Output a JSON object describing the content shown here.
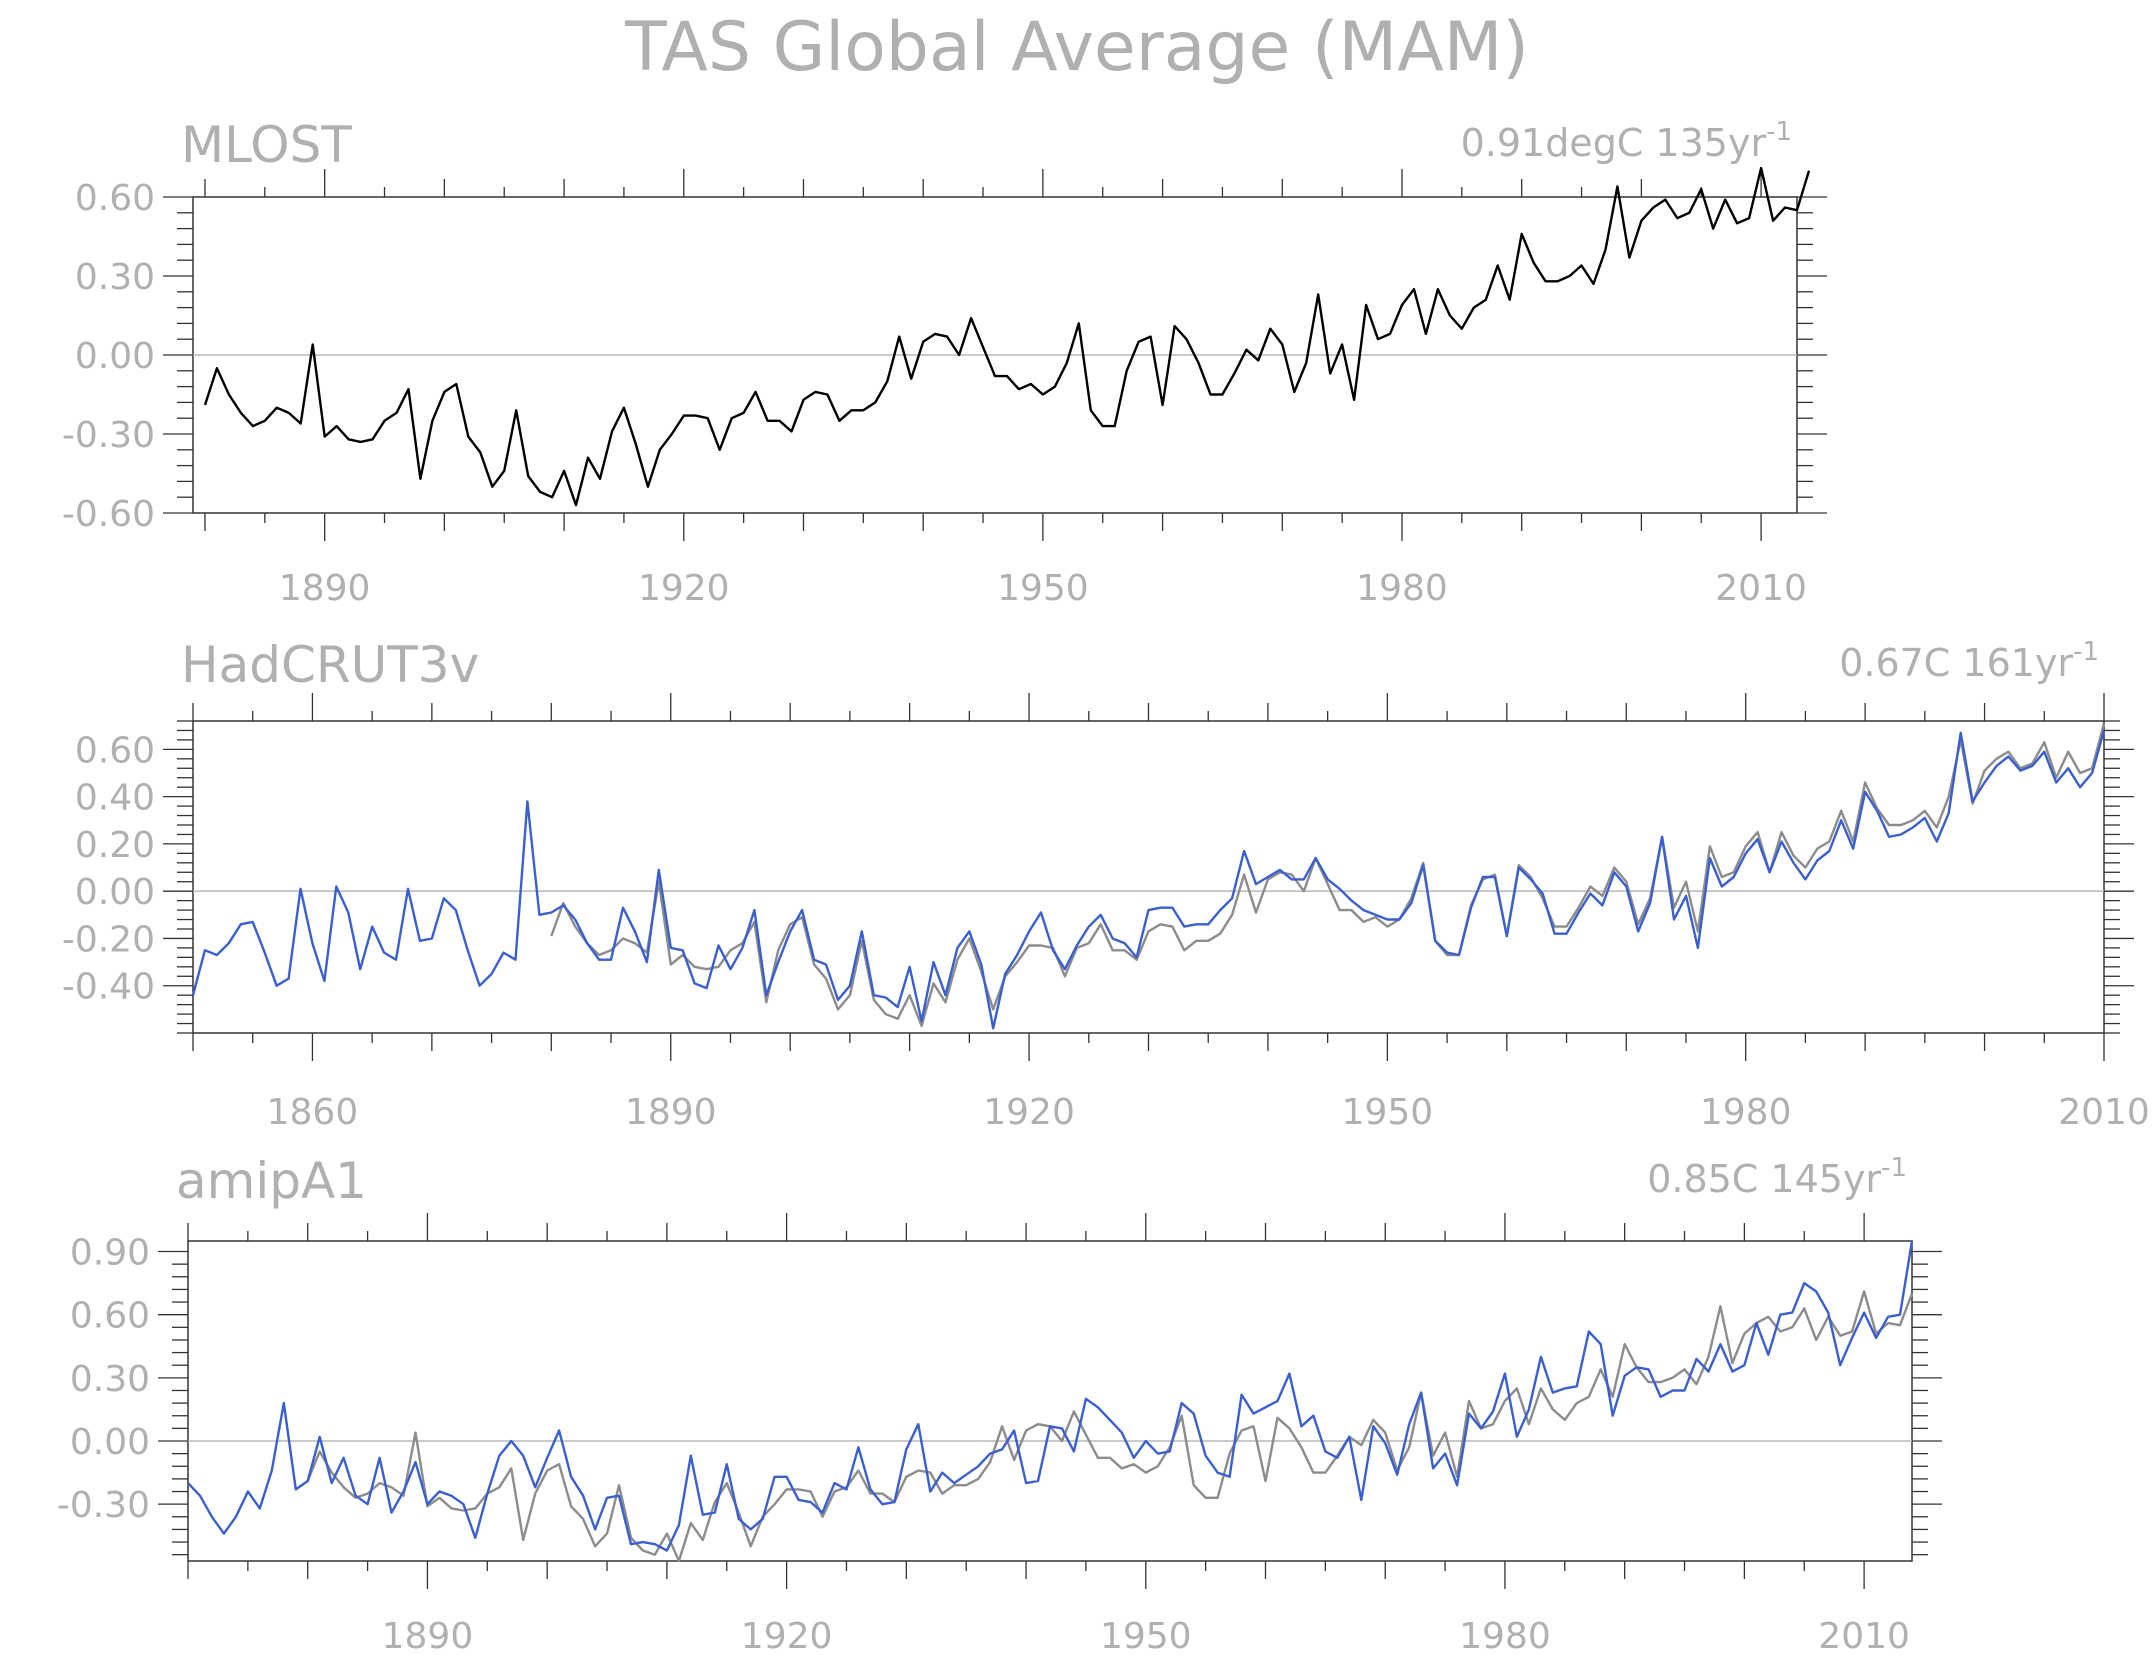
{
  "title": "TAS Global Average (MAM)",
  "colors": {
    "text": "#b0b0b0",
    "axis": "#333333",
    "zero_line": "#b8b8b8",
    "observed": "#000000",
    "observed_overlay": "#8c8c8c",
    "model": "#3a5fd0"
  },
  "chart_data": [
    {
      "type": "line",
      "name": "MLOST",
      "label": "MLOST",
      "trend_value": "0.91degC",
      "trend_years": "135yr",
      "trend_exp": "-1",
      "xlim": [
        1879,
        2013
      ],
      "ylim": [
        -0.6,
        0.6
      ],
      "xticks": [
        1890,
        1920,
        1950,
        1980,
        2010
      ],
      "yticks": [
        0.6,
        0.3,
        0.0,
        -0.3,
        -0.6
      ],
      "ytick_labels": [
        "0.60",
        "0.30",
        "0.00",
        "-0.30",
        "-0.60"
      ],
      "grid": false,
      "series": [
        {
          "color_key": "observed",
          "start": 1880,
          "values": [
            -0.19,
            -0.05,
            -0.15,
            -0.22,
            -0.27,
            -0.25,
            -0.2,
            -0.22,
            -0.26,
            0.04,
            -0.31,
            -0.27,
            -0.32,
            -0.33,
            -0.32,
            -0.25,
            -0.22,
            -0.13,
            -0.47,
            -0.25,
            -0.14,
            -0.11,
            -0.31,
            -0.37,
            -0.5,
            -0.44,
            -0.21,
            -0.46,
            -0.52,
            -0.54,
            -0.44,
            -0.57,
            -0.39,
            -0.47,
            -0.29,
            -0.2,
            -0.34,
            -0.5,
            -0.36,
            -0.3,
            -0.23,
            -0.23,
            -0.24,
            -0.36,
            -0.24,
            -0.22,
            -0.14,
            -0.25,
            -0.25,
            -0.29,
            -0.17,
            -0.14,
            -0.15,
            -0.25,
            -0.21,
            -0.21,
            -0.18,
            -0.1,
            0.07,
            -0.09,
            0.05,
            0.08,
            0.07,
            0.0,
            0.14,
            0.03,
            -0.08,
            -0.08,
            -0.13,
            -0.11,
            -0.15,
            -0.12,
            -0.03,
            0.12,
            -0.21,
            -0.27,
            -0.27,
            -0.06,
            0.05,
            0.07,
            -0.19,
            0.11,
            0.06,
            -0.03,
            -0.15,
            -0.15,
            -0.07,
            0.02,
            -0.02,
            0.1,
            0.04,
            -0.14,
            -0.03,
            0.23,
            -0.07,
            0.04,
            -0.17,
            0.19,
            0.06,
            0.08,
            0.19,
            0.25,
            0.08,
            0.25,
            0.15,
            0.1,
            0.18,
            0.21,
            0.34,
            0.21,
            0.46,
            0.35,
            0.28,
            0.28,
            0.3,
            0.34,
            0.27,
            0.4,
            0.64,
            0.37,
            0.51,
            0.56,
            0.59,
            0.52,
            0.54,
            0.63,
            0.48,
            0.59,
            0.5,
            0.52,
            0.71,
            0.51,
            0.56,
            0.55,
            0.7
          ]
        }
      ]
    },
    {
      "type": "line",
      "name": "HadCRUT3v",
      "label": "HadCRUT3v",
      "trend_value": "0.67C",
      "trend_years": "161yr",
      "trend_exp": "-1",
      "xlim": [
        1850,
        2010
      ],
      "ylim": [
        -0.6,
        0.72
      ],
      "xticks": [
        1860,
        1890,
        1920,
        1950,
        1980,
        2010
      ],
      "yticks": [
        0.6,
        0.4,
        0.2,
        0.0,
        -0.2,
        -0.4
      ],
      "ytick_labels": [
        "0.60",
        "0.40",
        "0.20",
        "0.00",
        "-0.20",
        "-0.40"
      ],
      "grid": false,
      "series": [
        {
          "color_key": "observed_overlay",
          "start": 1880,
          "values": [
            -0.19,
            -0.05,
            -0.15,
            -0.22,
            -0.27,
            -0.25,
            -0.2,
            -0.22,
            -0.26,
            0.04,
            -0.31,
            -0.27,
            -0.32,
            -0.33,
            -0.32,
            -0.25,
            -0.22,
            -0.13,
            -0.47,
            -0.25,
            -0.14,
            -0.11,
            -0.31,
            -0.37,
            -0.5,
            -0.44,
            -0.21,
            -0.46,
            -0.52,
            -0.54,
            -0.44,
            -0.57,
            -0.39,
            -0.47,
            -0.29,
            -0.2,
            -0.34,
            -0.5,
            -0.36,
            -0.3,
            -0.23,
            -0.23,
            -0.24,
            -0.36,
            -0.24,
            -0.22,
            -0.14,
            -0.25,
            -0.25,
            -0.29,
            -0.17,
            -0.14,
            -0.15,
            -0.25,
            -0.21,
            -0.21,
            -0.18,
            -0.1,
            0.07,
            -0.09,
            0.05,
            0.08,
            0.07,
            0.0,
            0.14,
            0.03,
            -0.08,
            -0.08,
            -0.13,
            -0.11,
            -0.15,
            -0.12,
            -0.03,
            0.12,
            -0.21,
            -0.27,
            -0.27,
            -0.06,
            0.05,
            0.07,
            -0.19,
            0.11,
            0.06,
            -0.03,
            -0.15,
            -0.15,
            -0.07,
            0.02,
            -0.02,
            0.1,
            0.04,
            -0.14,
            -0.03,
            0.23,
            -0.07,
            0.04,
            -0.17,
            0.19,
            0.06,
            0.08,
            0.19,
            0.25,
            0.08,
            0.25,
            0.15,
            0.1,
            0.18,
            0.21,
            0.34,
            0.21,
            0.46,
            0.35,
            0.28,
            0.28,
            0.3,
            0.34,
            0.27,
            0.4,
            0.64,
            0.37,
            0.51,
            0.56,
            0.59,
            0.52,
            0.54,
            0.63,
            0.48,
            0.59,
            0.5,
            0.52,
            0.71
          ]
        },
        {
          "color_key": "model",
          "start": 1850,
          "values": [
            -0.44,
            -0.25,
            -0.27,
            -0.22,
            -0.14,
            -0.13,
            -0.26,
            -0.4,
            -0.37,
            0.01,
            -0.22,
            -0.38,
            0.02,
            -0.09,
            -0.33,
            -0.15,
            -0.26,
            -0.29,
            0.01,
            -0.21,
            -0.2,
            -0.03,
            -0.08,
            -0.25,
            -0.4,
            -0.35,
            -0.26,
            -0.29,
            0.38,
            -0.1,
            -0.09,
            -0.06,
            -0.12,
            -0.22,
            -0.29,
            -0.29,
            -0.07,
            -0.17,
            -0.3,
            0.09,
            -0.24,
            -0.25,
            -0.39,
            -0.41,
            -0.23,
            -0.33,
            -0.24,
            -0.08,
            -0.44,
            -0.3,
            -0.17,
            -0.08,
            -0.29,
            -0.31,
            -0.46,
            -0.4,
            -0.17,
            -0.44,
            -0.45,
            -0.49,
            -0.32,
            -0.55,
            -0.3,
            -0.44,
            -0.24,
            -0.17,
            -0.31,
            -0.58,
            -0.35,
            -0.27,
            -0.17,
            -0.09,
            -0.25,
            -0.33,
            -0.23,
            -0.15,
            -0.1,
            -0.2,
            -0.22,
            -0.28,
            -0.08,
            -0.07,
            -0.07,
            -0.15,
            -0.14,
            -0.14,
            -0.08,
            -0.03,
            0.17,
            0.03,
            0.06,
            0.09,
            0.05,
            0.05,
            0.14,
            0.05,
            0.01,
            -0.04,
            -0.08,
            -0.1,
            -0.12,
            -0.12,
            -0.05,
            0.11,
            -0.21,
            -0.26,
            -0.27,
            -0.07,
            0.06,
            0.06,
            -0.19,
            0.1,
            0.05,
            -0.01,
            -0.18,
            -0.18,
            -0.09,
            -0.01,
            -0.06,
            0.08,
            0.02,
            -0.17,
            -0.05,
            0.23,
            -0.12,
            -0.02,
            -0.24,
            0.14,
            0.02,
            0.06,
            0.16,
            0.22,
            0.08,
            0.21,
            0.12,
            0.05,
            0.13,
            0.17,
            0.3,
            0.18,
            0.42,
            0.34,
            0.23,
            0.24,
            0.27,
            0.31,
            0.21,
            0.33,
            0.67,
            0.38,
            0.46,
            0.53,
            0.57,
            0.51,
            0.53,
            0.59,
            0.46,
            0.52,
            0.44,
            0.5,
            0.68
          ]
        }
      ]
    },
    {
      "type": "line",
      "name": "amipA1",
      "label": "amipA1",
      "trend_value": "0.85C",
      "trend_years": "145yr",
      "trend_exp": "-1",
      "xlim": [
        1870,
        2014
      ],
      "ylim": [
        -0.57,
        0.95
      ],
      "xticks": [
        1890,
        1920,
        1950,
        1980,
        2010
      ],
      "yticks": [
        0.9,
        0.6,
        0.3,
        0.0,
        -0.3
      ],
      "ytick_labels": [
        "0.90",
        "0.60",
        "0.30",
        "0.00",
        "-0.30"
      ],
      "grid": false,
      "series": [
        {
          "color_key": "observed_overlay",
          "start": 1880,
          "values": [
            -0.19,
            -0.05,
            -0.15,
            -0.22,
            -0.27,
            -0.25,
            -0.2,
            -0.22,
            -0.26,
            0.04,
            -0.31,
            -0.27,
            -0.32,
            -0.33,
            -0.32,
            -0.25,
            -0.22,
            -0.13,
            -0.47,
            -0.25,
            -0.14,
            -0.11,
            -0.31,
            -0.37,
            -0.5,
            -0.44,
            -0.21,
            -0.46,
            -0.52,
            -0.54,
            -0.44,
            -0.57,
            -0.39,
            -0.47,
            -0.29,
            -0.2,
            -0.34,
            -0.5,
            -0.36,
            -0.3,
            -0.23,
            -0.23,
            -0.24,
            -0.36,
            -0.24,
            -0.22,
            -0.14,
            -0.25,
            -0.25,
            -0.29,
            -0.17,
            -0.14,
            -0.15,
            -0.25,
            -0.21,
            -0.21,
            -0.18,
            -0.1,
            0.07,
            -0.09,
            0.05,
            0.08,
            0.07,
            0.0,
            0.14,
            0.03,
            -0.08,
            -0.08,
            -0.13,
            -0.11,
            -0.15,
            -0.12,
            -0.03,
            0.12,
            -0.21,
            -0.27,
            -0.27,
            -0.06,
            0.05,
            0.07,
            -0.19,
            0.11,
            0.06,
            -0.03,
            -0.15,
            -0.15,
            -0.07,
            0.02,
            -0.02,
            0.1,
            0.04,
            -0.14,
            -0.03,
            0.23,
            -0.07,
            0.04,
            -0.17,
            0.19,
            0.06,
            0.08,
            0.19,
            0.25,
            0.08,
            0.25,
            0.15,
            0.1,
            0.18,
            0.21,
            0.34,
            0.21,
            0.46,
            0.35,
            0.28,
            0.28,
            0.3,
            0.34,
            0.27,
            0.4,
            0.64,
            0.37,
            0.51,
            0.56,
            0.59,
            0.52,
            0.54,
            0.63,
            0.48,
            0.59,
            0.5,
            0.52,
            0.71,
            0.51,
            0.56,
            0.55,
            0.7
          ]
        },
        {
          "color_key": "model",
          "start": 1870,
          "values": [
            -0.2,
            -0.26,
            -0.36,
            -0.44,
            -0.36,
            -0.24,
            -0.32,
            -0.14,
            0.18,
            -0.23,
            -0.19,
            0.02,
            -0.2,
            -0.08,
            -0.26,
            -0.3,
            -0.08,
            -0.34,
            -0.24,
            -0.1,
            -0.3,
            -0.24,
            -0.26,
            -0.3,
            -0.46,
            -0.25,
            -0.07,
            0.0,
            -0.07,
            -0.22,
            -0.08,
            0.05,
            -0.17,
            -0.26,
            -0.42,
            -0.27,
            -0.26,
            -0.49,
            -0.48,
            -0.49,
            -0.52,
            -0.4,
            -0.07,
            -0.35,
            -0.34,
            -0.11,
            -0.37,
            -0.42,
            -0.37,
            -0.17,
            -0.17,
            -0.28,
            -0.29,
            -0.34,
            -0.2,
            -0.23,
            -0.03,
            -0.23,
            -0.3,
            -0.29,
            -0.04,
            0.08,
            -0.24,
            -0.15,
            -0.2,
            -0.16,
            -0.12,
            -0.06,
            -0.04,
            0.05,
            -0.2,
            -0.19,
            0.07,
            0.06,
            -0.05,
            0.2,
            0.16,
            0.1,
            0.04,
            -0.08,
            0.0,
            -0.06,
            -0.05,
            0.18,
            0.13,
            -0.07,
            -0.15,
            -0.17,
            0.22,
            0.13,
            0.16,
            0.19,
            0.32,
            0.07,
            0.12,
            -0.05,
            -0.08,
            0.02,
            -0.28,
            0.07,
            -0.01,
            -0.16,
            0.08,
            0.23,
            -0.13,
            -0.06,
            -0.21,
            0.13,
            0.06,
            0.14,
            0.32,
            0.02,
            0.15,
            0.4,
            0.23,
            0.25,
            0.26,
            0.52,
            0.46,
            0.12,
            0.31,
            0.35,
            0.34,
            0.21,
            0.24,
            0.24,
            0.39,
            0.33,
            0.46,
            0.33,
            0.36,
            0.56,
            0.41,
            0.6,
            0.61,
            0.75,
            0.71,
            0.61,
            0.36,
            0.49,
            0.61,
            0.49,
            0.59,
            0.6,
            0.95
          ]
        }
      ]
    }
  ]
}
